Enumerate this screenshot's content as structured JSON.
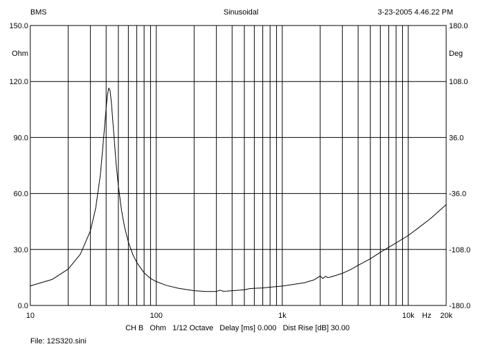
{
  "header": {
    "left": "BMS",
    "center": "Sinusoidal",
    "right": "3-23-2005 4.46.22 PM"
  },
  "footer": {
    "settings": "CH B   Ohm   1/12 Octave   Delay [ms] 0.000   Dist Rise [dB] 30.00",
    "file": "File: 12S320.sini"
  },
  "chart_data": {
    "type": "line",
    "title": "Sinusoidal",
    "xscale": "log",
    "xlim": [
      10,
      20000
    ],
    "ylim": [
      0,
      150
    ],
    "y2lim": [
      -180,
      180
    ],
    "grid": true,
    "x_ticks": [
      {
        "value": 10,
        "label": "10"
      },
      {
        "value": 100,
        "label": "100"
      },
      {
        "value": 1000,
        "label": "1k"
      },
      {
        "value": 10000,
        "label": "10k"
      },
      {
        "value": 20000,
        "label": "20k"
      }
    ],
    "x_unit": "Hz",
    "y_ticks": [
      "150.0",
      "120.0",
      "90.0",
      "60.0",
      "30.0",
      "0.0"
    ],
    "y_ticks_values": [
      150,
      120,
      90,
      60,
      30,
      0
    ],
    "y_unit": "Ohm",
    "y2_ticks": [
      "180.0",
      "108.0",
      "36.0",
      "-36.0",
      "-108.0",
      "-180.0"
    ],
    "y2_ticks_values": [
      180,
      108,
      36,
      -36,
      -108,
      -180
    ],
    "y2_unit": "Deg",
    "series": [
      {
        "color": "#000000",
        "x": [
          10,
          15,
          20,
          25,
          30,
          33,
          36,
          38,
          40,
          41,
          42,
          43,
          44,
          46,
          48,
          50,
          53,
          56,
          60,
          65,
          70,
          80,
          90,
          100,
          120,
          150,
          200,
          250,
          300,
          320,
          340,
          360,
          400,
          500,
          550,
          600,
          700,
          800,
          1000,
          1200,
          1500,
          1800,
          2000,
          2100,
          2200,
          2300,
          2400,
          2600,
          3000,
          3500,
          4000,
          5000,
          6000,
          8000,
          10000,
          12000,
          15000,
          20000
        ],
        "y": [
          10.5,
          14,
          19.5,
          27.5,
          40,
          52,
          70,
          88,
          106,
          113,
          116.5,
          115,
          109,
          92,
          76,
          64,
          51,
          42,
          34,
          27.5,
          23,
          17.5,
          14.5,
          12.8,
          10.8,
          9.2,
          7.9,
          7.5,
          7.5,
          8.2,
          7.6,
          7.7,
          7.9,
          8.4,
          9.0,
          9.2,
          9.4,
          9.8,
          10.4,
          11.2,
          12.2,
          13.8,
          15.8,
          14.4,
          15.6,
          14.9,
          15.2,
          15.9,
          17.2,
          19.3,
          21.5,
          25.0,
          28.5,
          33.5,
          37.5,
          41.5,
          46.5,
          54
        ]
      }
    ]
  }
}
